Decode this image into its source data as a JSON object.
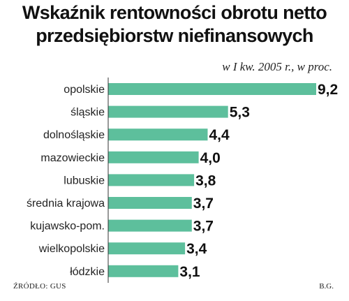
{
  "header": {
    "title_line1": "Wskaźnik rentowności obrotu netto",
    "title_line2": "przedsiębiorstw niefinansowych",
    "subtitle": "w I kw. 2005 r., w proc."
  },
  "footer": {
    "source": "ŹRÓDŁO: GUS",
    "author": "B.G."
  },
  "colors": {
    "bar": "#5dbf9c",
    "highlight_value": "#c0213a",
    "text": "#111111",
    "axis": "#333333"
  },
  "chart_data": {
    "type": "bar",
    "orientation": "horizontal",
    "title": "Wskaźnik rentowności obrotu netto przedsiębiorstw niefinansowych",
    "subtitle": "w I kw. 2005 r., w proc.",
    "categories": [
      "opolskie",
      "śląskie",
      "dolnośląskie",
      "mazowieckie",
      "lubuskie",
      "średnia krajowa",
      "kujawsko-pom.",
      "wielkopolskie",
      "łódzkie"
    ],
    "values": [
      9.2,
      5.3,
      4.4,
      4.0,
      3.8,
      3.7,
      3.7,
      3.4,
      3.1
    ],
    "value_labels": [
      "9,2",
      "5,3",
      "4,4",
      "4,0",
      "3,8",
      "3,7",
      "3,7",
      "3,4",
      "3,1"
    ],
    "highlight_category": "średnia krajowa",
    "xlim": [
      0,
      9.2
    ],
    "grid": false,
    "legend": "none"
  }
}
